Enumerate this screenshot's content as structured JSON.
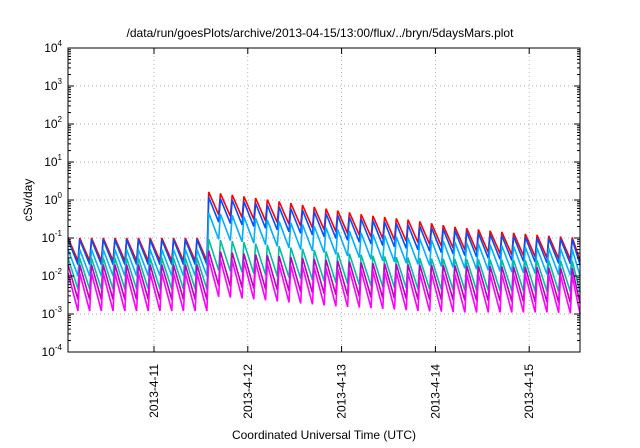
{
  "chart_data": {
    "type": "line",
    "title": "/data/run/goesPlots/archive/2013-04-15/13:00/flux/../bryn/5daysMars.plot",
    "xlabel": "Coordinated Universal Time (UTC)",
    "ylabel": "cSv/day",
    "yscale": "log",
    "ylim": [
      0.0001,
      10000
    ],
    "y_ticks": [
      {
        "base": "10",
        "exp": "-4"
      },
      {
        "base": "10",
        "exp": "-3"
      },
      {
        "base": "10",
        "exp": "-2"
      },
      {
        "base": "10",
        "exp": "-1"
      },
      {
        "base": "10",
        "exp": "0"
      },
      {
        "base": "10",
        "exp": "1"
      },
      {
        "base": "10",
        "exp": "2"
      },
      {
        "base": "10",
        "exp": "3"
      },
      {
        "base": "10",
        "exp": "4"
      }
    ],
    "xlim": [
      "2013-04-10T02:00",
      "2013-04-15T13:00"
    ],
    "x_ticks": [
      "2013-4-11",
      "2013-4-12",
      "2013-4-13",
      "2013-4-14",
      "2013-4-15"
    ],
    "grid": true,
    "sawtooth_period_hours": 3,
    "series": [
      {
        "color": "#ff0000",
        "baseline": [
          0.1,
          0.1,
          2.2,
          1.8,
          1.3,
          0.9,
          0.6,
          0.4,
          0.3,
          0.2,
          0.15,
          0.12,
          0.1
        ],
        "trough_factor": 0.25,
        "spike_trough": 0.5
      },
      {
        "color": "#0050ff",
        "baseline": [
          0.09,
          0.09,
          1.6,
          1.3,
          0.95,
          0.65,
          0.45,
          0.3,
          0.22,
          0.16,
          0.12,
          0.1,
          0.09
        ],
        "trough_factor": 0.22,
        "spike_trough": 0.4
      },
      {
        "color": "#00b0ff",
        "baseline": [
          0.05,
          0.05,
          0.6,
          0.5,
          0.38,
          0.27,
          0.19,
          0.13,
          0.1,
          0.08,
          0.065,
          0.055,
          0.05
        ],
        "trough_factor": 0.2,
        "spike_trough": 0.2
      },
      {
        "color": "#00c0a0",
        "baseline": [
          0.03,
          0.03,
          0.12,
          0.1,
          0.08,
          0.06,
          0.045,
          0.035,
          0.03,
          0.028,
          0.027,
          0.026,
          0.025
        ],
        "trough_factor": 0.15,
        "spike_trough": 0.1
      },
      {
        "color": "#c000c0",
        "baseline": [
          0.02,
          0.02,
          0.06,
          0.05,
          0.04,
          0.033,
          0.027,
          0.022,
          0.02,
          0.019,
          0.018,
          0.017,
          0.016
        ],
        "trough_factor": 0.12,
        "spike_trough": 0.06
      },
      {
        "color": "#ff00ff",
        "baseline": [
          0.012,
          0.012,
          0.035,
          0.03,
          0.025,
          0.02,
          0.016,
          0.014,
          0.012,
          0.011,
          0.011,
          0.011,
          0.01
        ],
        "trough_factor": 0.1,
        "spike_trough": 0.04
      }
    ]
  }
}
